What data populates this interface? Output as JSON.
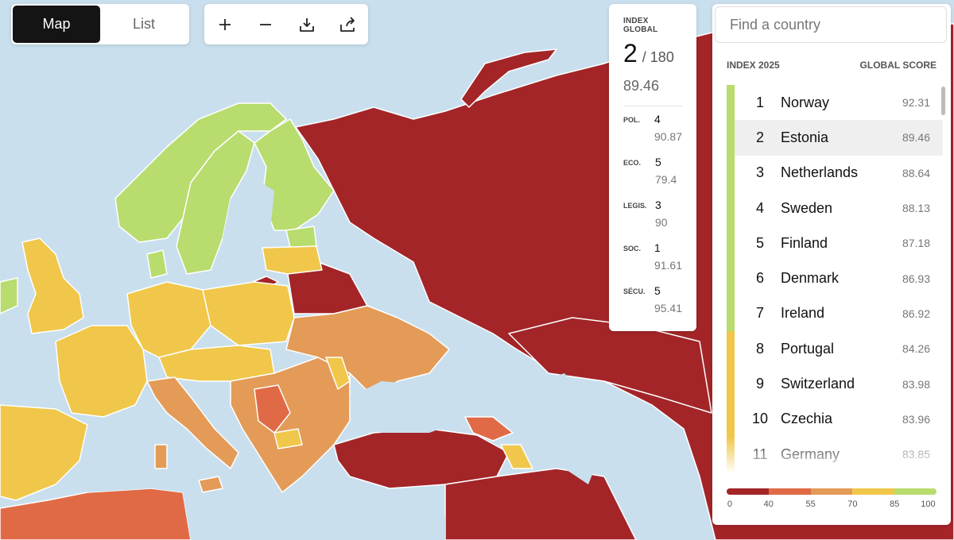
{
  "view_toggle": {
    "map_label": "Map",
    "list_label": "List"
  },
  "toolbar": {
    "zoom_in_icon": "plus-icon",
    "zoom_out_icon": "minus-icon",
    "download_icon": "download-icon",
    "share_icon": "share-icon"
  },
  "detail": {
    "index_label": "INDEX GLOBAL",
    "rank": "2",
    "total": "/ 180",
    "score": "89.46",
    "indicators": [
      {
        "label": "POL.",
        "rank": "4",
        "score": "90.87"
      },
      {
        "label": "ECO.",
        "rank": "5",
        "score": "79.4"
      },
      {
        "label": "LEGIS.",
        "rank": "3",
        "score": "90"
      },
      {
        "label": "SOC.",
        "rank": "1",
        "score": "91.61"
      },
      {
        "label": "SÉCU.",
        "rank": "5",
        "score": "95.41"
      }
    ]
  },
  "panel": {
    "search_placeholder": "Find a country",
    "index_label": "INDEX 2025",
    "score_label": "GLOBAL SCORE",
    "rows": [
      {
        "rank": "1",
        "name": "Norway",
        "score": "92.31",
        "color": "#b8dc6e"
      },
      {
        "rank": "2",
        "name": "Estonia",
        "score": "89.46",
        "color": "#b8dc6e",
        "selected": true
      },
      {
        "rank": "3",
        "name": "Netherlands",
        "score": "88.64",
        "color": "#b8dc6e"
      },
      {
        "rank": "4",
        "name": "Sweden",
        "score": "88.13",
        "color": "#b8dc6e"
      },
      {
        "rank": "5",
        "name": "Finland",
        "score": "87.18",
        "color": "#b8dc6e"
      },
      {
        "rank": "6",
        "name": "Denmark",
        "score": "86.93",
        "color": "#b8dc6e"
      },
      {
        "rank": "7",
        "name": "Ireland",
        "score": "86.92",
        "color": "#b8dc6e"
      },
      {
        "rank": "8",
        "name": "Portugal",
        "score": "84.26",
        "color": "#f0c74a"
      },
      {
        "rank": "9",
        "name": "Switzerland",
        "score": "83.98",
        "color": "#f0c74a"
      },
      {
        "rank": "10",
        "name": "Czechia",
        "score": "83.96",
        "color": "#f0c74a"
      },
      {
        "rank": "11",
        "name": "Germany",
        "score": "83.85",
        "color": "#f0c74a"
      }
    ]
  },
  "legend": {
    "ticks": [
      "0",
      "40",
      "55",
      "70",
      "85",
      "100"
    ],
    "colors": [
      "#a32528",
      "#e06a45",
      "#e39b57",
      "#f0c74a",
      "#b8dc6e"
    ]
  },
  "map_colors": {
    "water": "#c9dfee",
    "good": "#b8dc6e",
    "satisfactory": "#f0c74a",
    "problematic": "#e39b57",
    "difficult": "#e06a45",
    "very_serious": "#a32528",
    "border": "#ffffff"
  }
}
